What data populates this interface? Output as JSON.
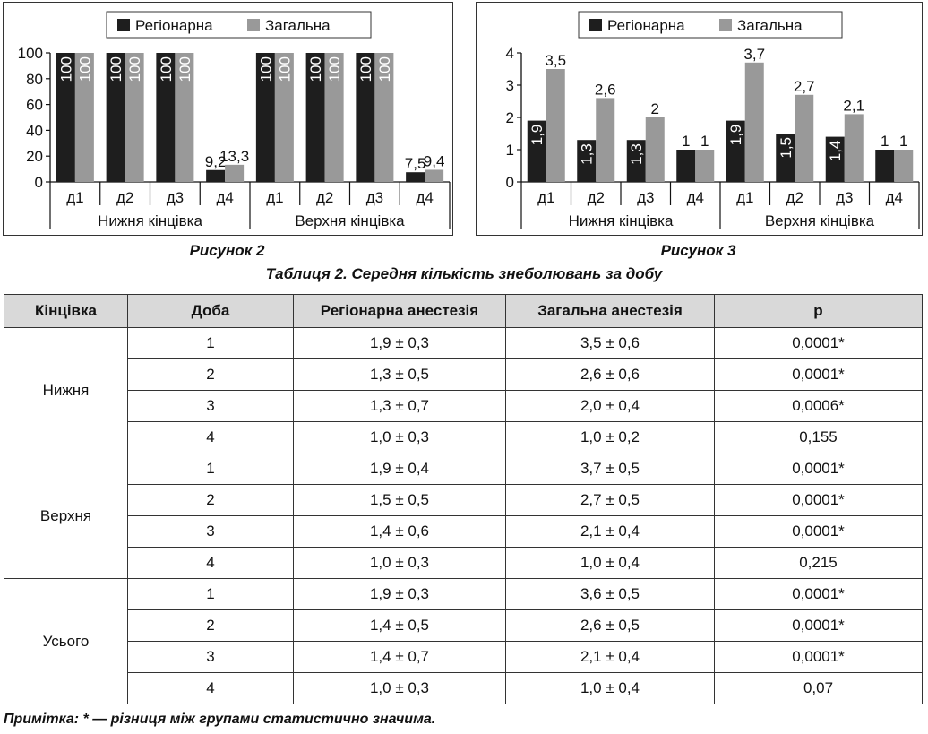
{
  "chart_data": [
    {
      "type": "bar",
      "caption": "Рисунок 2",
      "legend": [
        "Регіонарна",
        "Загальна"
      ],
      "legend_position": "top-center",
      "categories": [
        "д1",
        "д2",
        "д3",
        "д4",
        "д1",
        "д2",
        "д3",
        "д4"
      ],
      "groups": [
        "Нижня кінцівка",
        "Верхня кінцівка"
      ],
      "series": [
        {
          "name": "Регіонарна",
          "color": "#1e1e1e",
          "values": [
            100,
            100,
            100,
            9.2,
            100,
            100,
            100,
            7.5
          ],
          "labels": [
            "100",
            "100",
            "100",
            "9,2",
            "100",
            "100",
            "100",
            "7,5"
          ]
        },
        {
          "name": "Загальна",
          "color": "#999999",
          "values": [
            100,
            100,
            100,
            13.3,
            100,
            100,
            100,
            9.4
          ],
          "labels": [
            "100",
            "100",
            "100",
            "13,3",
            "100",
            "100",
            "100",
            "9,4"
          ]
        }
      ],
      "ylim": [
        0,
        100
      ],
      "yticks": [
        0,
        20,
        40,
        60,
        80,
        100
      ],
      "grid": false
    },
    {
      "type": "bar",
      "caption": "Рисунок 3",
      "legend": [
        "Регіонарна",
        "Загальна"
      ],
      "legend_position": "top-center",
      "categories": [
        "д1",
        "д2",
        "д3",
        "д4",
        "д1",
        "д2",
        "д3",
        "д4"
      ],
      "groups": [
        "Нижня кінцівка",
        "Верхня кінцівка"
      ],
      "series": [
        {
          "name": "Регіонарна",
          "color": "#1e1e1e",
          "values": [
            1.9,
            1.3,
            1.3,
            1,
            1.9,
            1.5,
            1.4,
            1
          ],
          "labels": [
            "1,9",
            "1,3",
            "1,3",
            "1",
            "1,9",
            "1,5",
            "1,4",
            "1"
          ]
        },
        {
          "name": "Загальна",
          "color": "#999999",
          "values": [
            3.5,
            2.6,
            2,
            1,
            3.7,
            2.7,
            2.1,
            1
          ],
          "labels": [
            "3,5",
            "2,6",
            "2",
            "1",
            "3,7",
            "2,7",
            "2,1",
            "1"
          ]
        }
      ],
      "ylim": [
        0,
        4
      ],
      "yticks": [
        0,
        1,
        2,
        3,
        4
      ],
      "grid": false
    }
  ],
  "table": {
    "title": "Таблиця 2.  Середня кількість знеболювань за добу",
    "headers": [
      "Кінцівка",
      "Доба",
      "Регіонарна анестезія",
      "Загальна анестезія",
      "p"
    ],
    "groups": [
      {
        "name": "Нижня",
        "rows": [
          [
            "1",
            "1,9 ± 0,3",
            "3,5 ± 0,6",
            "0,0001*"
          ],
          [
            "2",
            "1,3 ± 0,5",
            "2,6 ± 0,6",
            "0,0001*"
          ],
          [
            "3",
            "1,3 ± 0,7",
            "2,0 ± 0,4",
            "0,0006*"
          ],
          [
            "4",
            "1,0 ± 0,3",
            "1,0 ± 0,2",
            "0,155"
          ]
        ]
      },
      {
        "name": "Верхня",
        "rows": [
          [
            "1",
            "1,9 ± 0,4",
            "3,7 ± 0,5",
            "0,0001*"
          ],
          [
            "2",
            "1,5 ± 0,5",
            "2,7 ± 0,5",
            "0,0001*"
          ],
          [
            "3",
            "1,4 ± 0,6",
            "2,1 ± 0,4",
            "0,0001*"
          ],
          [
            "4",
            "1,0 ± 0,3",
            "1,0 ± 0,4",
            "0,215"
          ]
        ]
      },
      {
        "name": "Усього",
        "rows": [
          [
            "1",
            "1,9 ± 0,3",
            "3,6 ± 0,5",
            "0,0001*"
          ],
          [
            "2",
            "1,4 ± 0,5",
            "2,6 ± 0,5",
            "0,0001*"
          ],
          [
            "3",
            "1,4 ± 0,7",
            "2,1 ± 0,4",
            "0,0001*"
          ],
          [
            "4",
            "1,0 ± 0,3",
            "1,0 ± 0,4",
            "0,07"
          ]
        ]
      }
    ]
  },
  "note": "Примітка:  * — різниця між групами статистично значима."
}
